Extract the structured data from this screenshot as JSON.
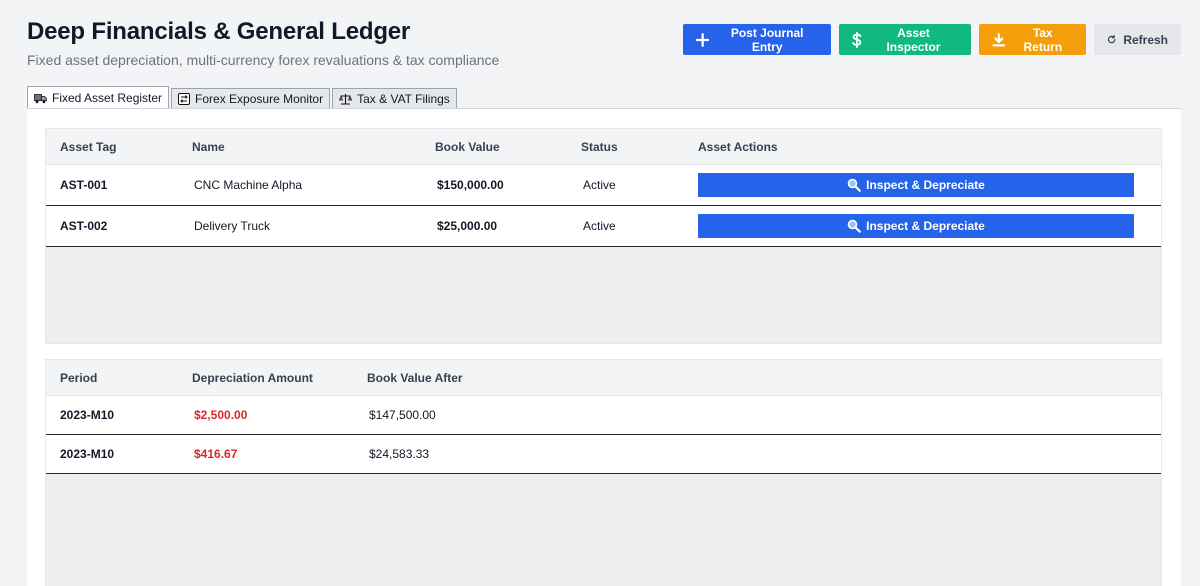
{
  "header": {
    "title": "Deep Financials & General Ledger",
    "subtitle": "Fixed asset depreciation, multi-currency forex revaluations & tax compliance"
  },
  "toolbar": {
    "post_journal_label": "Post Journal Entry",
    "asset_inspector_label": "Asset Inspector",
    "tax_return_label": "Tax Return",
    "refresh_label": "Refresh"
  },
  "tabs": [
    {
      "label": "Fixed Asset Register",
      "icon": "truck-icon",
      "active": true
    },
    {
      "label": "Forex Exposure Monitor",
      "icon": "currency-exchange-icon",
      "active": false
    },
    {
      "label": "Tax & VAT Filings",
      "icon": "scales-icon",
      "active": false
    }
  ],
  "asset_grid": {
    "columns": [
      "Asset Tag",
      "Name",
      "Book Value",
      "Status",
      "Asset Actions"
    ],
    "rows": [
      {
        "tag": "AST-001",
        "name": "CNC Machine Alpha",
        "book_value": "$150,000.00",
        "status": "Active",
        "action": "Inspect & Depreciate"
      },
      {
        "tag": "AST-002",
        "name": "Delivery Truck",
        "book_value": "$25,000.00",
        "status": "Active",
        "action": "Inspect & Depreciate"
      }
    ]
  },
  "depreciation_grid": {
    "columns": [
      "Period",
      "Depreciation Amount",
      "Book Value After"
    ],
    "rows": [
      {
        "period": "2023-M10",
        "amount": "$2,500.00",
        "after": "$147,500.00"
      },
      {
        "period": "2023-M10",
        "amount": "$416.67",
        "after": "$24,583.33"
      }
    ]
  },
  "colors": {
    "primary": "#2563eb",
    "success": "#10b981",
    "warning": "#f59e0b",
    "negative": "#dc2626"
  }
}
